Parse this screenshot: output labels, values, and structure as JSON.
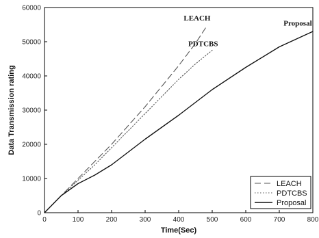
{
  "chart_data": {
    "type": "line",
    "xlabel": "Time(Sec)",
    "ylabel": "Data Transmission rating",
    "xlim": [
      0,
      800
    ],
    "ylim": [
      0,
      60000
    ],
    "x_ticks": [
      "0",
      "100",
      "200",
      "300",
      "400",
      "500",
      "600",
      "700",
      "800"
    ],
    "y_ticks": [
      "0",
      "10000",
      "20000",
      "30000",
      "40000",
      "50000",
      "60000"
    ],
    "grid": false,
    "legend_position": "bottom-right",
    "series": [
      {
        "name": "LEACH",
        "style": "dashed",
        "color": "#555555",
        "x": [
          0,
          50,
          100,
          150,
          200,
          250,
          300,
          350,
          400,
          450,
          480
        ],
        "y": [
          0,
          5000,
          10000,
          15000,
          20000,
          25500,
          31000,
          37000,
          43000,
          49500,
          54000
        ]
      },
      {
        "name": "PDTCBS",
        "style": "dotted",
        "color": "#555555",
        "x": [
          0,
          50,
          100,
          150,
          200,
          250,
          300,
          350,
          400,
          450,
          500
        ],
        "y": [
          0,
          5000,
          9500,
          14000,
          19000,
          24000,
          29000,
          34000,
          39000,
          43500,
          47500
        ]
      },
      {
        "name": "Proposal",
        "style": "solid",
        "color": "#111111",
        "x": [
          0,
          50,
          100,
          150,
          200,
          300,
          400,
          500,
          600,
          700,
          800
        ],
        "y": [
          0,
          5000,
          8500,
          11000,
          14000,
          21500,
          28500,
          36000,
          42500,
          48500,
          53000
        ]
      }
    ],
    "annotations": [
      {
        "text": "LEACH",
        "x": 455,
        "y": 56200,
        "anchor": "middle"
      },
      {
        "text": "PDTCBS",
        "x": 473,
        "y": 48700,
        "anchor": "middle"
      },
      {
        "text": "Proposal",
        "x": 755,
        "y": 54700,
        "anchor": "middle"
      }
    ]
  }
}
